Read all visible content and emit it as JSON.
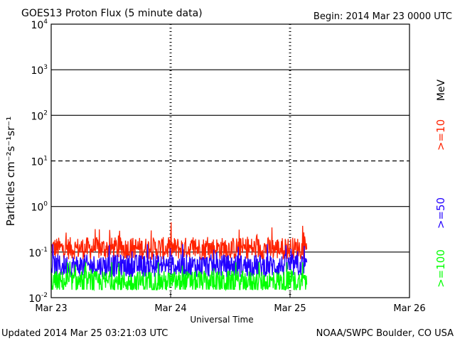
{
  "chart_data": {
    "type": "line",
    "title": "GOES13 Proton Flux (5 minute data)",
    "begin_label": "Begin: 2014 Mar 23 0000 UTC",
    "xlabel": "Universal Time",
    "ylabel": "Particles cm⁻²s⁻¹sr⁻¹",
    "x_ticks": [
      "Mar 23",
      "Mar 24",
      "Mar 25",
      "Mar 26"
    ],
    "xlim_days": [
      0,
      3
    ],
    "y_ticks": [
      {
        "base": "10",
        "exp": "-2",
        "value": 0.01
      },
      {
        "base": "10",
        "exp": "-1",
        "value": 0.1
      },
      {
        "base": "10",
        "exp": "0",
        "value": 1
      },
      {
        "base": "10",
        "exp": "1",
        "value": 10
      },
      {
        "base": "10",
        "exp": "2",
        "value": 100
      },
      {
        "base": "10",
        "exp": "3",
        "value": 1000
      },
      {
        "base": "10",
        "exp": "4",
        "value": 10000
      }
    ],
    "ylim": [
      0.01,
      10000
    ],
    "yscale": "log",
    "data_end_day": 2.14,
    "unit_label": "MeV",
    "series": [
      {
        "name": ">=10",
        "color": "#ff2200",
        "typical": 0.12,
        "min": 0.07,
        "max": 0.45
      },
      {
        "name": ">=50",
        "color": "#2200ff",
        "typical": 0.05,
        "min": 0.025,
        "max": 0.15
      },
      {
        "name": ">=100",
        "color": "#00ff00",
        "typical": 0.022,
        "min": 0.015,
        "max": 0.06
      }
    ]
  },
  "footer": {
    "updated": "Updated 2014 Mar 25 03:21:03 UTC",
    "credit": "NOAA/SWPC Boulder, CO USA"
  }
}
